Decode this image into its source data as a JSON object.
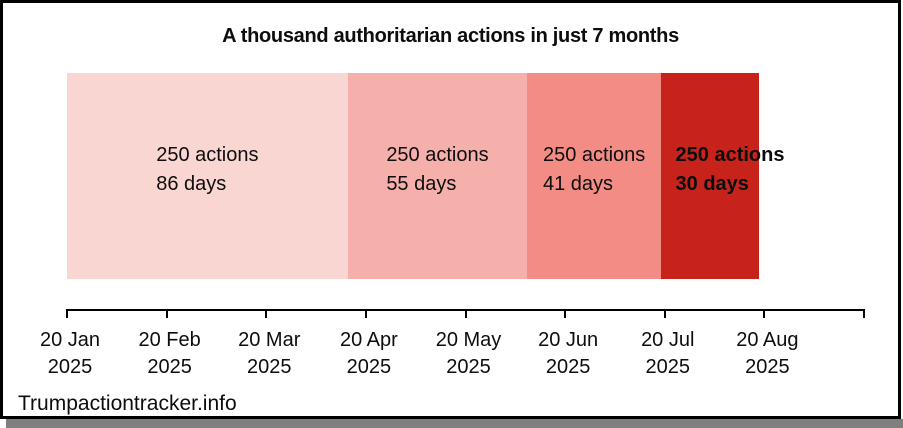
{
  "title": "A thousand authoritarian actions in just 7 months",
  "source": "Trumpactiontracker.info",
  "colors": {
    "segment_1": "#fad6d2",
    "segment_2": "#f6b0ab",
    "segment_3": "#f28c85",
    "segment_4": "#c7231a",
    "axis": "#000000",
    "text": "#0d0d0d",
    "card_border": "#000000",
    "card_shadow": "#7f7f7f"
  },
  "chart_data": {
    "type": "bar",
    "subtype": "horizontal-timeline-segments",
    "title": "A thousand authoritarian actions in just 7 months",
    "legend_position": "none",
    "grid": false,
    "segments": [
      {
        "actions": 250,
        "days": 86,
        "actions_label": "250 actions",
        "days_label": "86 days",
        "color": "#fad6d2",
        "bold": false
      },
      {
        "actions": 250,
        "days": 55,
        "actions_label": "250 actions",
        "days_label": "55 days",
        "color": "#f6b0ab",
        "bold": false
      },
      {
        "actions": 250,
        "days": 41,
        "actions_label": "250 actions",
        "days_label": "41 days",
        "color": "#f28c85",
        "bold": false
      },
      {
        "actions": 250,
        "days": 30,
        "actions_label": "250 actions",
        "days_label": "30 days",
        "color": "#c7231a",
        "bold": true
      }
    ],
    "x_axis": {
      "range": [
        "20 Jan 2025",
        "20 Aug 2025"
      ],
      "ticks": [
        {
          "date": "20 Jan",
          "year": "2025"
        },
        {
          "date": "20 Feb",
          "year": "2025"
        },
        {
          "date": "20 Mar",
          "year": "2025"
        },
        {
          "date": "20 Apr",
          "year": "2025"
        },
        {
          "date": "20 May",
          "year": "2025"
        },
        {
          "date": "20 Jun",
          "year": "2025"
        },
        {
          "date": "20 Jul",
          "year": "2025"
        },
        {
          "date": "20 Aug",
          "year": "2025"
        }
      ]
    }
  }
}
